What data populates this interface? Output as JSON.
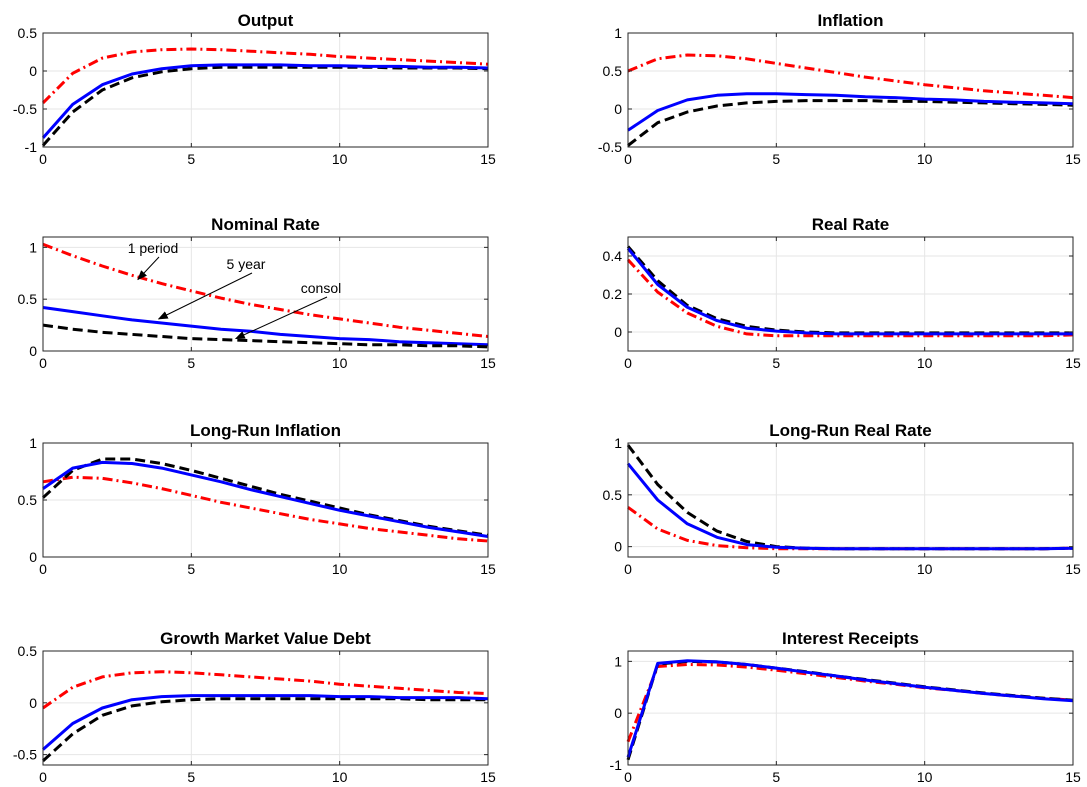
{
  "chart_data": [
    {
      "type": "line",
      "title": "Output",
      "xlim": [
        0,
        15
      ],
      "ylim": [
        -1,
        0.5
      ],
      "xticks": [
        0,
        5,
        10,
        15
      ],
      "yticks": [
        -1,
        -0.5,
        0,
        0.5
      ],
      "ytick_labels": [
        "-1",
        "-0.5",
        "0",
        "0.5"
      ],
      "grid": true,
      "x": [
        0,
        1,
        2,
        3,
        4,
        5,
        6,
        7,
        8,
        9,
        10,
        11,
        12,
        13,
        14,
        15
      ],
      "series": [
        {
          "color": "#ff0000",
          "style": "dash-dot",
          "values": [
            -0.42,
            -0.03,
            0.17,
            0.25,
            0.28,
            0.29,
            0.28,
            0.26,
            0.24,
            0.22,
            0.19,
            0.17,
            0.15,
            0.13,
            0.11,
            0.09
          ]
        },
        {
          "color": "#000000",
          "style": "dashed",
          "values": [
            -0.98,
            -0.54,
            -0.25,
            -0.09,
            -0.01,
            0.03,
            0.05,
            0.05,
            0.05,
            0.05,
            0.05,
            0.05,
            0.04,
            0.04,
            0.04,
            0.03
          ]
        },
        {
          "color": "#0000ff",
          "style": "solid",
          "values": [
            -0.88,
            -0.44,
            -0.18,
            -0.04,
            0.03,
            0.07,
            0.08,
            0.08,
            0.08,
            0.07,
            0.07,
            0.06,
            0.06,
            0.05,
            0.05,
            0.04
          ]
        }
      ]
    },
    {
      "type": "line",
      "title": "Inflation",
      "xlim": [
        0,
        15
      ],
      "ylim": [
        -0.5,
        1
      ],
      "xticks": [
        0,
        5,
        10,
        15
      ],
      "yticks": [
        -0.5,
        0,
        0.5,
        1
      ],
      "ytick_labels": [
        "-0.5",
        "0",
        "0.5",
        "1"
      ],
      "grid": true,
      "x": [
        0,
        1,
        2,
        3,
        4,
        5,
        6,
        7,
        8,
        9,
        10,
        11,
        12,
        13,
        14,
        15
      ],
      "series": [
        {
          "color": "#ff0000",
          "style": "dash-dot",
          "values": [
            0.5,
            0.66,
            0.71,
            0.7,
            0.66,
            0.6,
            0.54,
            0.48,
            0.42,
            0.37,
            0.32,
            0.28,
            0.24,
            0.21,
            0.18,
            0.15
          ]
        },
        {
          "color": "#000000",
          "style": "dashed",
          "values": [
            -0.48,
            -0.18,
            -0.04,
            0.04,
            0.08,
            0.1,
            0.11,
            0.11,
            0.11,
            0.1,
            0.1,
            0.09,
            0.08,
            0.07,
            0.06,
            0.05
          ]
        },
        {
          "color": "#0000ff",
          "style": "solid",
          "values": [
            -0.28,
            -0.02,
            0.12,
            0.18,
            0.2,
            0.2,
            0.19,
            0.18,
            0.16,
            0.15,
            0.13,
            0.12,
            0.1,
            0.09,
            0.08,
            0.07
          ]
        }
      ]
    },
    {
      "type": "line",
      "title": "Nominal Rate",
      "xlim": [
        0,
        15
      ],
      "ylim": [
        0,
        1.1
      ],
      "xticks": [
        0,
        5,
        10,
        15
      ],
      "yticks": [
        0,
        0.5,
        1
      ],
      "ytick_labels": [
        "0",
        "0.5",
        "1"
      ],
      "grid": true,
      "x": [
        0,
        1,
        2,
        3,
        4,
        5,
        6,
        7,
        8,
        9,
        10,
        11,
        12,
        13,
        14,
        15
      ],
      "series": [
        {
          "color": "#ff0000",
          "style": "dash-dot",
          "values": [
            1.03,
            0.92,
            0.82,
            0.73,
            0.65,
            0.58,
            0.51,
            0.45,
            0.4,
            0.35,
            0.31,
            0.27,
            0.23,
            0.2,
            0.17,
            0.14
          ]
        },
        {
          "color": "#0000ff",
          "style": "solid",
          "values": [
            0.42,
            0.38,
            0.34,
            0.3,
            0.27,
            0.24,
            0.21,
            0.19,
            0.16,
            0.14,
            0.12,
            0.11,
            0.09,
            0.08,
            0.07,
            0.06
          ]
        },
        {
          "color": "#000000",
          "style": "dashed",
          "values": [
            0.25,
            0.21,
            0.18,
            0.16,
            0.14,
            0.12,
            0.11,
            0.1,
            0.09,
            0.08,
            0.07,
            0.06,
            0.06,
            0.05,
            0.05,
            0.04
          ]
        }
      ],
      "annotations": [
        {
          "text": "1 period",
          "x": 3.2,
          "y": 0.69
        },
        {
          "text": "5 year",
          "x": 3.9,
          "y": 0.31
        },
        {
          "text": "consol",
          "x": 6.5,
          "y": 0.12
        }
      ]
    },
    {
      "type": "line",
      "title": "Real Rate",
      "xlim": [
        0,
        15
      ],
      "ylim": [
        -0.1,
        0.5
      ],
      "xticks": [
        0,
        5,
        10,
        15
      ],
      "yticks": [
        0,
        0.2,
        0.4
      ],
      "ytick_labels": [
        "0",
        "0.2",
        "0.4"
      ],
      "grid": true,
      "x": [
        0,
        1,
        2,
        3,
        4,
        5,
        6,
        7,
        8,
        9,
        10,
        11,
        12,
        13,
        14,
        15
      ],
      "series": [
        {
          "color": "#ff0000",
          "style": "dash-dot",
          "values": [
            0.38,
            0.21,
            0.1,
            0.03,
            -0.01,
            -0.02,
            -0.02,
            -0.02,
            -0.02,
            -0.02,
            -0.02,
            -0.02,
            -0.02,
            -0.02,
            -0.02,
            -0.015
          ]
        },
        {
          "color": "#000000",
          "style": "dashed",
          "values": [
            0.45,
            0.27,
            0.14,
            0.07,
            0.03,
            0.01,
            0.0,
            -0.005,
            -0.005,
            -0.005,
            -0.005,
            -0.005,
            -0.005,
            -0.005,
            -0.005,
            -0.005
          ]
        },
        {
          "color": "#0000ff",
          "style": "solid",
          "values": [
            0.44,
            0.25,
            0.13,
            0.06,
            0.02,
            0.005,
            -0.005,
            -0.01,
            -0.01,
            -0.01,
            -0.01,
            -0.01,
            -0.01,
            -0.01,
            -0.01,
            -0.01
          ]
        }
      ]
    },
    {
      "type": "line",
      "title": "Long-Run Inflation",
      "xlim": [
        0,
        15
      ],
      "ylim": [
        0,
        1
      ],
      "xticks": [
        0,
        5,
        10,
        15
      ],
      "yticks": [
        0,
        0.5,
        1
      ],
      "ytick_labels": [
        "0",
        "0.5",
        "1"
      ],
      "grid": true,
      "x": [
        0,
        1,
        2,
        3,
        4,
        5,
        6,
        7,
        8,
        9,
        10,
        11,
        12,
        13,
        14,
        15
      ],
      "series": [
        {
          "color": "#ff0000",
          "style": "dash-dot",
          "values": [
            0.66,
            0.7,
            0.69,
            0.65,
            0.6,
            0.54,
            0.48,
            0.43,
            0.38,
            0.33,
            0.29,
            0.25,
            0.22,
            0.19,
            0.16,
            0.14
          ]
        },
        {
          "color": "#000000",
          "style": "dashed",
          "values": [
            0.52,
            0.76,
            0.86,
            0.86,
            0.82,
            0.76,
            0.69,
            0.62,
            0.55,
            0.49,
            0.43,
            0.37,
            0.32,
            0.27,
            0.23,
            0.19
          ]
        },
        {
          "color": "#0000ff",
          "style": "solid",
          "values": [
            0.6,
            0.78,
            0.83,
            0.82,
            0.78,
            0.72,
            0.66,
            0.59,
            0.53,
            0.47,
            0.41,
            0.36,
            0.31,
            0.26,
            0.22,
            0.18
          ]
        }
      ]
    },
    {
      "type": "line",
      "title": "Long-Run Real Rate",
      "xlim": [
        0,
        15
      ],
      "ylim": [
        -0.1,
        1
      ],
      "xticks": [
        0,
        5,
        10,
        15
      ],
      "yticks": [
        0,
        0.5,
        1
      ],
      "ytick_labels": [
        "0",
        "0.5",
        "1"
      ],
      "grid": true,
      "x": [
        0,
        1,
        2,
        3,
        4,
        5,
        6,
        7,
        8,
        9,
        10,
        11,
        12,
        13,
        14,
        15
      ],
      "series": [
        {
          "color": "#ff0000",
          "style": "dash-dot",
          "values": [
            0.38,
            0.17,
            0.06,
            0.01,
            -0.01,
            -0.02,
            -0.02,
            -0.02,
            -0.02,
            -0.02,
            -0.02,
            -0.02,
            -0.02,
            -0.02,
            -0.02,
            -0.015
          ]
        },
        {
          "color": "#000000",
          "style": "dashed",
          "values": [
            0.98,
            0.6,
            0.33,
            0.15,
            0.05,
            0.0,
            -0.015,
            -0.02,
            -0.02,
            -0.02,
            -0.02,
            -0.02,
            -0.02,
            -0.02,
            -0.02,
            -0.015
          ]
        },
        {
          "color": "#0000ff",
          "style": "solid",
          "values": [
            0.8,
            0.45,
            0.22,
            0.09,
            0.02,
            -0.005,
            -0.015,
            -0.02,
            -0.02,
            -0.02,
            -0.02,
            -0.02,
            -0.02,
            -0.02,
            -0.02,
            -0.015
          ]
        }
      ]
    },
    {
      "type": "line",
      "title": "Growth Market Value Debt",
      "xlim": [
        0,
        15
      ],
      "ylim": [
        -0.6,
        0.5
      ],
      "xticks": [
        0,
        5,
        10,
        15
      ],
      "yticks": [
        -0.5,
        0,
        0.5
      ],
      "ytick_labels": [
        "-0.5",
        "0",
        "0.5"
      ],
      "grid": true,
      "x": [
        0,
        1,
        2,
        3,
        4,
        5,
        6,
        7,
        8,
        9,
        10,
        11,
        12,
        13,
        14,
        15
      ],
      "series": [
        {
          "color": "#ff0000",
          "style": "dash-dot",
          "values": [
            -0.05,
            0.15,
            0.25,
            0.29,
            0.3,
            0.29,
            0.27,
            0.25,
            0.23,
            0.21,
            0.18,
            0.16,
            0.14,
            0.12,
            0.1,
            0.09
          ]
        },
        {
          "color": "#000000",
          "style": "dashed",
          "values": [
            -0.56,
            -0.3,
            -0.12,
            -0.03,
            0.01,
            0.03,
            0.04,
            0.04,
            0.04,
            0.04,
            0.04,
            0.04,
            0.04,
            0.03,
            0.03,
            0.03
          ]
        },
        {
          "color": "#0000ff",
          "style": "solid",
          "values": [
            -0.45,
            -0.2,
            -0.05,
            0.03,
            0.06,
            0.07,
            0.07,
            0.07,
            0.07,
            0.07,
            0.06,
            0.06,
            0.05,
            0.05,
            0.05,
            0.04
          ]
        }
      ]
    },
    {
      "type": "line",
      "title": "Interest Receipts",
      "xlim": [
        0,
        15
      ],
      "ylim": [
        -1,
        1.2
      ],
      "xticks": [
        0,
        5,
        10,
        15
      ],
      "yticks": [
        -1,
        0,
        1
      ],
      "ytick_labels": [
        "-1",
        "0",
        "1"
      ],
      "grid": true,
      "x": [
        0,
        1,
        2,
        3,
        4,
        5,
        6,
        7,
        8,
        9,
        10,
        11,
        12,
        13,
        14,
        15
      ],
      "series": [
        {
          "color": "#ff0000",
          "style": "dash-dot",
          "values": [
            -0.55,
            0.9,
            0.94,
            0.93,
            0.89,
            0.83,
            0.76,
            0.69,
            0.62,
            0.56,
            0.49,
            0.44,
            0.38,
            0.33,
            0.29,
            0.25
          ]
        },
        {
          "color": "#000000",
          "style": "dashed",
          "values": [
            -0.9,
            0.95,
            1.0,
            0.99,
            0.94,
            0.87,
            0.8,
            0.72,
            0.65,
            0.58,
            0.51,
            0.45,
            0.39,
            0.34,
            0.29,
            0.25
          ]
        },
        {
          "color": "#0000ff",
          "style": "solid",
          "values": [
            -0.85,
            0.96,
            1.01,
            0.99,
            0.94,
            0.87,
            0.79,
            0.72,
            0.64,
            0.57,
            0.5,
            0.44,
            0.38,
            0.33,
            0.28,
            0.24
          ]
        }
      ]
    }
  ]
}
